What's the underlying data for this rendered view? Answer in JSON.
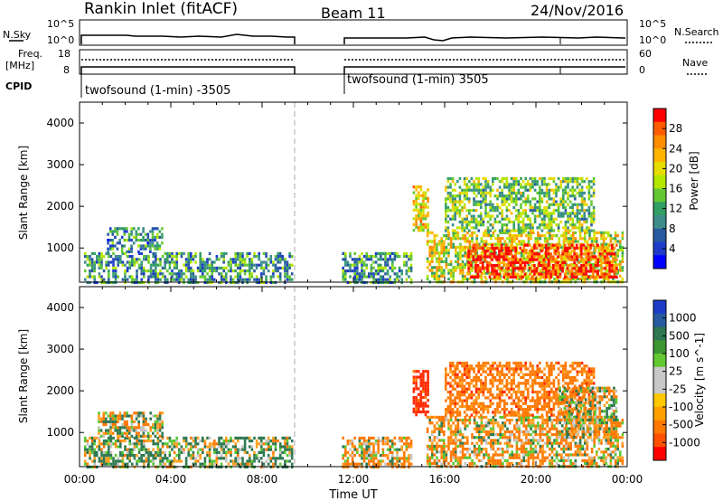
{
  "header": {
    "station": "Rankin Inlet (fitACF)",
    "beam": "Beam 11",
    "date": "24/Nov/2016"
  },
  "strips": {
    "nsky_label": "N.Sky",
    "nsky_tick_top": "10^5",
    "nsky_tick_bottom": "10^0",
    "nsearch_label": "N.Search",
    "freq_label": "Freq.",
    "freq_unit": "[MHz]",
    "freq_tick_top": "18",
    "freq_tick_bottom": "8",
    "nave_label": "Nave",
    "nave_tick_top": "60",
    "nave_tick_bottom": "0",
    "cpid_label": "CPID",
    "cpid_1": "twofsound (1-min) -3505",
    "cpid_2": "twofsound (1-min) 3505"
  },
  "power_panel": {
    "ylabel": "Slant Range [km]",
    "cbar_label": "Power [dB]",
    "cbar_ticks": [
      "28",
      "24",
      "20",
      "16",
      "12",
      "8",
      "4"
    ],
    "cbar_colors": [
      "#ff0000",
      "#ff5a00",
      "#ff8c00",
      "#ffb400",
      "#e6dc00",
      "#b4e600",
      "#64c832",
      "#32a064",
      "#3c8c8c",
      "#285aa0",
      "#1e3cc8",
      "#0000ff"
    ]
  },
  "velocity_panel": {
    "ylabel": "Slant Range [km]",
    "cbar_label": "Velocity [m s^-1]",
    "cbar_ticks": [
      "1000",
      "500",
      "100",
      "25",
      "-25",
      "-100",
      "-500",
      "-1000"
    ],
    "cbar_colors": [
      "#1e3cc8",
      "#285aa0",
      "#2d7850",
      "#3c9632",
      "#64c832",
      "#c8c8c8",
      "#c8c8c8",
      "#ffc800",
      "#ffa000",
      "#ff7800",
      "#ff5000",
      "#ff0000"
    ]
  },
  "y_ticks": [
    "4000",
    "3000",
    "2000",
    "1000"
  ],
  "x_ticks": [
    "00:00",
    "04:00",
    "08:00",
    "12:00",
    "16:00",
    "20:00",
    "00:00"
  ],
  "xlabel": "Time UT",
  "chart_data": [
    {
      "type": "heatmap",
      "quantity": "power",
      "xlabel": "Time UT",
      "ylabel": "Slant Range [km]",
      "xlim_hours": [
        0,
        24
      ],
      "ylim_km": [
        180,
        4500
      ],
      "data_gap_hours": [
        9.4,
        11.5
      ],
      "colorbar_range_db": [
        0,
        30
      ],
      "patches": [
        {
          "t0": 0.2,
          "t1": 9.3,
          "r0": 200,
          "r1": 900,
          "level_db": 10
        },
        {
          "t0": 1.2,
          "t1": 3.6,
          "r0": 900,
          "r1": 1500,
          "level_db": 9
        },
        {
          "t0": 11.5,
          "t1": 14.5,
          "r0": 200,
          "r1": 900,
          "level_db": 10
        },
        {
          "t0": 14.6,
          "t1": 15.3,
          "r0": 1400,
          "r1": 2500,
          "level_db": 20
        },
        {
          "t0": 15.2,
          "t1": 23.8,
          "r0": 200,
          "r1": 1400,
          "level_db": 18
        },
        {
          "t0": 16.0,
          "t1": 22.5,
          "r0": 1400,
          "r1": 2700,
          "level_db": 14
        },
        {
          "t0": 17.0,
          "t1": 23.5,
          "r0": 300,
          "r1": 1100,
          "level_db": 28
        }
      ]
    },
    {
      "type": "heatmap",
      "quantity": "velocity",
      "xlabel": "Time UT",
      "ylabel": "Slant Range [km]",
      "xlim_hours": [
        0,
        24
      ],
      "ylim_km": [
        180,
        4500
      ],
      "data_gap_hours": [
        9.4,
        11.5
      ],
      "colorbar_range_ms": [
        -1000,
        1000
      ],
      "patches": [
        {
          "t0": 0.2,
          "t1": 9.3,
          "r0": 200,
          "r1": 900,
          "level_ms": 100
        },
        {
          "t0": 0.8,
          "t1": 3.6,
          "r0": 900,
          "r1": 1500,
          "level_ms": 0
        },
        {
          "t0": 11.5,
          "t1": 14.5,
          "r0": 200,
          "r1": 900,
          "level_ms": -100
        },
        {
          "t0": 14.6,
          "t1": 15.3,
          "r0": 1400,
          "r1": 2500,
          "level_ms": -700
        },
        {
          "t0": 15.2,
          "t1": 23.8,
          "r0": 200,
          "r1": 1400,
          "level_ms": -100
        },
        {
          "t0": 16.0,
          "t1": 22.5,
          "r0": 1400,
          "r1": 2700,
          "level_ms": -300
        },
        {
          "t0": 21.0,
          "t1": 23.5,
          "r0": 900,
          "r1": 2100,
          "level_ms": 0
        }
      ]
    }
  ]
}
